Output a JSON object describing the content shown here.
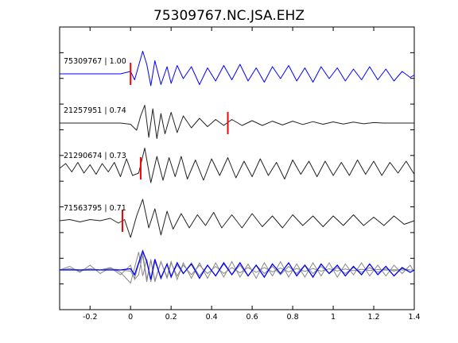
{
  "chart_data": {
    "type": "line",
    "title": "75309767.NC.JSA.EHZ",
    "xlabel": "",
    "ylabel": "",
    "xlim": [
      -0.35,
      1.4
    ],
    "xticks": [
      -0.2,
      0,
      0.2,
      0.4,
      0.6,
      0.8,
      1,
      1.2,
      1.4
    ],
    "xtick_labels": [
      "-0.2",
      "0",
      "0.2",
      "0.4",
      "0.6",
      "0.8",
      "1",
      "1.2",
      "1.4"
    ],
    "grid": false,
    "legend": false,
    "colors": {
      "reference": "#0000ff",
      "trace": "#222222",
      "overlay": "#888888",
      "pick": "#ff0000",
      "axes": "#000000"
    },
    "traces": [
      {
        "label": "75309767 | 1.00",
        "color": "#0000ff",
        "pick_time": 0.0,
        "x": [
          -0.35,
          -0.2,
          -0.05,
          0.0,
          0.02,
          0.04,
          0.06,
          0.08,
          0.1,
          0.12,
          0.15,
          0.18,
          0.2,
          0.23,
          0.26,
          0.3,
          0.34,
          0.38,
          0.42,
          0.46,
          0.5,
          0.54,
          0.58,
          0.62,
          0.66,
          0.7,
          0.74,
          0.78,
          0.82,
          0.86,
          0.9,
          0.94,
          0.98,
          1.02,
          1.06,
          1.1,
          1.14,
          1.18,
          1.22,
          1.26,
          1.3,
          1.34,
          1.38,
          1.4
        ],
        "y": [
          0.0,
          0.0,
          0.0,
          0.1,
          -0.25,
          0.35,
          0.95,
          0.4,
          -0.5,
          0.55,
          -0.45,
          0.3,
          -0.4,
          0.35,
          -0.2,
          0.3,
          -0.45,
          0.25,
          -0.3,
          0.35,
          -0.25,
          0.4,
          -0.3,
          0.25,
          -0.35,
          0.3,
          -0.2,
          0.35,
          -0.3,
          0.25,
          -0.35,
          0.3,
          -0.2,
          0.25,
          -0.3,
          0.2,
          -0.25,
          0.3,
          -0.25,
          0.2,
          -0.3,
          0.1,
          -0.15,
          -0.05
        ]
      },
      {
        "label": "21257951 | 0.74",
        "color": "#222222",
        "pick_time": 0.48,
        "x": [
          -0.35,
          -0.2,
          -0.05,
          0.0,
          0.03,
          0.05,
          0.07,
          0.09,
          0.11,
          0.13,
          0.15,
          0.17,
          0.2,
          0.23,
          0.26,
          0.3,
          0.34,
          0.38,
          0.42,
          0.46,
          0.5,
          0.55,
          0.6,
          0.65,
          0.7,
          0.75,
          0.8,
          0.85,
          0.9,
          0.95,
          1.0,
          1.05,
          1.1,
          1.15,
          1.2,
          1.25,
          1.3,
          1.35,
          1.4
        ],
        "y": [
          0.0,
          0.0,
          0.0,
          -0.05,
          -0.3,
          0.3,
          0.75,
          -0.6,
          0.6,
          -0.65,
          0.4,
          -0.45,
          0.45,
          -0.4,
          0.3,
          -0.2,
          0.2,
          -0.15,
          0.15,
          -0.1,
          0.15,
          -0.1,
          0.1,
          -0.1,
          0.08,
          -0.08,
          0.08,
          -0.06,
          0.06,
          -0.05,
          0.05,
          -0.04,
          0.04,
          -0.03,
          0.02,
          0.0,
          0.0,
          0.0,
          0.0
        ]
      },
      {
        "label": "21290674 | 0.73",
        "color": "#222222",
        "pick_time": 0.05,
        "x": [
          -0.35,
          -0.32,
          -0.29,
          -0.26,
          -0.23,
          -0.2,
          -0.17,
          -0.14,
          -0.11,
          -0.08,
          -0.05,
          -0.02,
          0.01,
          0.04,
          0.07,
          0.1,
          0.13,
          0.16,
          0.19,
          0.22,
          0.25,
          0.28,
          0.32,
          0.36,
          0.4,
          0.44,
          0.48,
          0.52,
          0.56,
          0.6,
          0.64,
          0.68,
          0.72,
          0.76,
          0.8,
          0.84,
          0.88,
          0.92,
          0.96,
          1.0,
          1.04,
          1.08,
          1.12,
          1.16,
          1.2,
          1.24,
          1.28,
          1.32,
          1.36,
          1.4
        ],
        "y": [
          0.0,
          0.2,
          -0.15,
          0.25,
          -0.2,
          0.15,
          -0.25,
          0.2,
          -0.15,
          0.25,
          -0.35,
          0.4,
          -0.3,
          -0.2,
          0.85,
          -0.6,
          0.5,
          -0.5,
          0.45,
          -0.35,
          0.5,
          -0.45,
          0.35,
          -0.5,
          0.4,
          -0.3,
          0.45,
          -0.4,
          0.3,
          -0.35,
          0.4,
          -0.3,
          0.25,
          -0.45,
          0.35,
          -0.25,
          0.3,
          -0.35,
          0.3,
          -0.3,
          0.25,
          -0.3,
          0.35,
          -0.25,
          0.3,
          -0.3,
          0.25,
          -0.2,
          0.3,
          -0.25
        ]
      },
      {
        "label": "71563795 | 0.71",
        "color": "#222222",
        "pick_time": -0.04,
        "x": [
          -0.35,
          -0.3,
          -0.25,
          -0.2,
          -0.15,
          -0.1,
          -0.06,
          -0.03,
          0.0,
          0.03,
          0.06,
          0.09,
          0.12,
          0.15,
          0.18,
          0.21,
          0.25,
          0.29,
          0.33,
          0.37,
          0.41,
          0.45,
          0.5,
          0.55,
          0.6,
          0.65,
          0.7,
          0.75,
          0.8,
          0.85,
          0.9,
          0.95,
          1.0,
          1.05,
          1.1,
          1.15,
          1.2,
          1.25,
          1.3,
          1.35,
          1.4
        ],
        "y": [
          0.0,
          0.05,
          -0.05,
          0.05,
          0.0,
          0.1,
          -0.1,
          0.05,
          -0.7,
          0.2,
          0.9,
          -0.3,
          0.5,
          -0.6,
          0.4,
          -0.35,
          0.3,
          -0.3,
          0.25,
          -0.2,
          0.35,
          -0.3,
          0.25,
          -0.3,
          0.3,
          -0.25,
          0.2,
          -0.3,
          0.25,
          -0.2,
          0.2,
          -0.25,
          0.2,
          -0.2,
          0.25,
          -0.2,
          0.15,
          -0.2,
          0.2,
          -0.15,
          0.0
        ]
      }
    ],
    "overlay": {
      "note": "stack of all traces aligned, reference in blue on top of gray traces",
      "x": [
        -0.35,
        -0.3,
        -0.25,
        -0.2,
        -0.15,
        -0.1,
        -0.05,
        0.0,
        0.02,
        0.04,
        0.06,
        0.08,
        0.1,
        0.12,
        0.15,
        0.18,
        0.2,
        0.23,
        0.26,
        0.3,
        0.34,
        0.38,
        0.42,
        0.46,
        0.5,
        0.54,
        0.58,
        0.62,
        0.66,
        0.7,
        0.74,
        0.78,
        0.82,
        0.86,
        0.9,
        0.94,
        0.98,
        1.02,
        1.06,
        1.1,
        1.14,
        1.18,
        1.22,
        1.26,
        1.3,
        1.34,
        1.38,
        1.4
      ],
      "gray_series": [
        [
          0.0,
          0.15,
          -0.1,
          0.2,
          -0.15,
          0.1,
          -0.2,
          0.2,
          -0.4,
          -0.2,
          0.7,
          -0.4,
          0.4,
          -0.45,
          0.35,
          -0.3,
          0.35,
          -0.4,
          0.3,
          -0.35,
          0.3,
          -0.35,
          0.3,
          -0.3,
          0.35,
          -0.3,
          0.25,
          -0.35,
          0.3,
          -0.25,
          0.35,
          -0.3,
          0.25,
          -0.3,
          0.3,
          -0.25,
          0.3,
          -0.3,
          0.25,
          -0.2,
          0.3,
          -0.25,
          0.2,
          -0.25,
          0.2,
          -0.15,
          0.2,
          -0.1
        ],
        [
          0.0,
          0.05,
          0.0,
          0.05,
          0.0,
          0.05,
          0.0,
          -0.05,
          -0.35,
          0.25,
          0.6,
          -0.5,
          0.45,
          -0.5,
          0.35,
          -0.35,
          0.3,
          -0.25,
          0.2,
          -0.2,
          0.2,
          -0.15,
          0.15,
          -0.15,
          0.1,
          -0.12,
          0.1,
          -0.1,
          0.1,
          -0.08,
          0.08,
          -0.08,
          0.06,
          -0.06,
          0.06,
          -0.05,
          0.05,
          -0.04,
          0.04,
          -0.03,
          0.03,
          -0.02,
          0.02,
          -0.01,
          0.01,
          0.0,
          0.0,
          0.0
        ],
        [
          0.0,
          0.05,
          -0.05,
          0.05,
          0.0,
          0.1,
          -0.1,
          -0.55,
          0.1,
          0.75,
          -0.25,
          0.45,
          -0.5,
          0.35,
          -0.3,
          0.25,
          -0.25,
          0.2,
          -0.15,
          0.3,
          -0.25,
          0.2,
          -0.25,
          0.25,
          -0.2,
          0.2,
          -0.25,
          0.2,
          -0.15,
          0.15,
          -0.2,
          0.15,
          -0.15,
          0.2,
          -0.15,
          0.15,
          -0.15,
          0.1,
          -0.15,
          0.1,
          -0.1,
          0.1,
          -0.1,
          0.05,
          -0.05,
          0.05,
          0.0,
          0.0
        ]
      ],
      "blue_series": [
        0.0,
        0.0,
        0.0,
        0.0,
        0.0,
        0.0,
        0.0,
        0.05,
        -0.2,
        0.3,
        0.8,
        0.35,
        -0.4,
        0.45,
        -0.35,
        0.25,
        -0.3,
        0.3,
        -0.15,
        0.25,
        -0.35,
        0.2,
        -0.25,
        0.3,
        -0.2,
        0.3,
        -0.25,
        0.2,
        -0.3,
        0.25,
        -0.15,
        0.3,
        -0.25,
        0.2,
        -0.3,
        0.25,
        -0.15,
        0.2,
        -0.25,
        0.15,
        -0.2,
        0.25,
        -0.2,
        0.15,
        -0.25,
        0.1,
        -0.1,
        0.0
      ]
    }
  }
}
